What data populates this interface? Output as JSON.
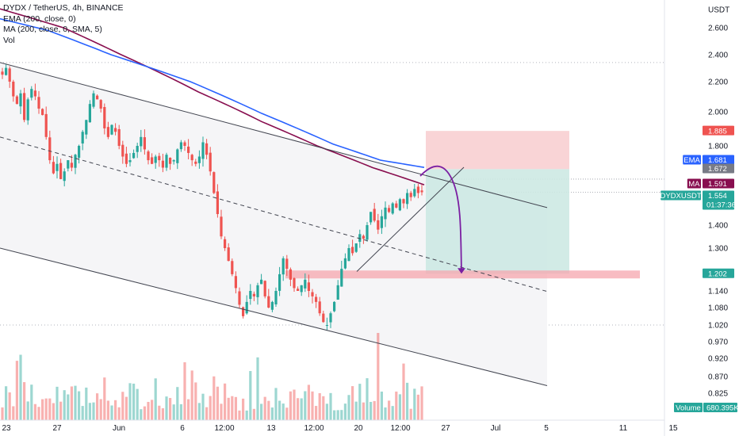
{
  "legend": {
    "title": "DYDX / TetherUS, 4h, BINANCE",
    "ema": "EMA (200, close, 0)",
    "ma": "MA (200, close, 0, SMA, 5)",
    "vol": "Vol"
  },
  "colors": {
    "up": "#26a69a",
    "down": "#ef5350",
    "ema": "#2962ff",
    "ma": "#880e4f",
    "stop_zone": "#f7c9cc",
    "target_zone": "#cde9e3",
    "support_band": "#f6a5ad",
    "channel": "#f5f5f7"
  },
  "chart_data": {
    "type": "candlestick",
    "symbol": "DYDXUSDT",
    "interval": "4h",
    "exchange": "BINANCE",
    "ylim": [
      0.8,
      2.75
    ],
    "yticks": [
      "USDT",
      "2.600",
      "2.400",
      "2.200",
      "2.000",
      "1.800",
      "1.400",
      "1.300",
      "1.140",
      "1.080",
      "1.020",
      "0.970",
      "0.920",
      "0.870",
      "0.825"
    ],
    "xticks": [
      "23",
      "27",
      "Jun",
      "6",
      "12:00",
      "13",
      "12:00",
      "20",
      "12:00",
      "27",
      "Jul",
      "5",
      "11",
      "15"
    ],
    "price_tags": [
      {
        "label": "",
        "value": "1.885",
        "color": "#ef5350"
      },
      {
        "label": "EMA",
        "value": "1.681",
        "color": "#2962ff"
      },
      {
        "label": "",
        "value": "1.672",
        "color": "#787b86"
      },
      {
        "label": "MA",
        "value": "1.591",
        "color": "#880e4f"
      },
      {
        "label": "DYDXUSDT",
        "value": "1.554",
        "sub": "01:37:36",
        "color": "#26a69a"
      },
      {
        "label": "",
        "value": "1.202",
        "color": "#26a69a"
      }
    ],
    "volume_tag": {
      "label": "Volume",
      "value": "680.395K",
      "color": "#26a69a"
    },
    "close_path": [
      2.25,
      2.3,
      2.2,
      2.1,
      2.05,
      2.12,
      1.95,
      2.08,
      2.15,
      2.1,
      2.02,
      1.98,
      1.85,
      1.72,
      1.65,
      1.7,
      1.62,
      1.66,
      1.72,
      1.68,
      1.75,
      1.8,
      1.88,
      1.95,
      2.05,
      2.12,
      2.08,
      2.02,
      1.9,
      1.85,
      1.92,
      1.88,
      1.8,
      1.74,
      1.7,
      1.72,
      1.76,
      1.8,
      1.85,
      1.78,
      1.72,
      1.7,
      1.74,
      1.72,
      1.68,
      1.75,
      1.7,
      1.72,
      1.78,
      1.82,
      1.8,
      1.76,
      1.72,
      1.7,
      1.74,
      1.82,
      1.75,
      1.66,
      1.55,
      1.45,
      1.35,
      1.3,
      1.25,
      1.2,
      1.15,
      1.09,
      1.05,
      1.1,
      1.14,
      1.12,
      1.16,
      1.18,
      1.12,
      1.08,
      1.1,
      1.14,
      1.2,
      1.26,
      1.22,
      1.18,
      1.15,
      1.14,
      1.16,
      1.18,
      1.14,
      1.12,
      1.1,
      1.06,
      1.03,
      1.02,
      1.06,
      1.1,
      1.16,
      1.22,
      1.26,
      1.3,
      1.28,
      1.32,
      1.36,
      1.34,
      1.4,
      1.46,
      1.42,
      1.38,
      1.44,
      1.48,
      1.46,
      1.5,
      1.48,
      1.52,
      1.5,
      1.55,
      1.53,
      1.57,
      1.55,
      1.554
    ],
    "ema_line": [
      [
        0,
        2.67
      ],
      [
        60,
        2.58
      ],
      [
        140,
        2.4
      ],
      [
        240,
        2.2
      ],
      [
        330,
        1.99
      ],
      [
        420,
        1.81
      ],
      [
        480,
        1.72
      ],
      [
        535,
        1.681
      ]
    ],
    "ma_line": [
      [
        0,
        2.75
      ],
      [
        80,
        2.6
      ],
      [
        160,
        2.38
      ],
      [
        250,
        2.13
      ],
      [
        330,
        1.94
      ],
      [
        400,
        1.8
      ],
      [
        470,
        1.68
      ],
      [
        535,
        1.591
      ]
    ],
    "channel_top": [
      [
        0,
        2.34
      ],
      [
        690,
        1.48
      ]
    ],
    "channel_mid": [
      [
        0,
        1.85
      ],
      [
        690,
        1.138
      ]
    ],
    "channel_bottom": [
      [
        0,
        1.3
      ],
      [
        690,
        0.845
      ]
    ],
    "rising_line": [
      [
        450,
        1.21
      ],
      [
        585,
        1.682
      ]
    ],
    "support_level": 1.202,
    "position": {
      "entry": 1.672,
      "stop": 1.885,
      "target": 1.202,
      "x_start": 537,
      "x_end": 718
    },
    "projection": [
      [
        530,
        1.636
      ],
      [
        558,
        1.68
      ],
      [
        572,
        1.6
      ],
      [
        579,
        1.42
      ],
      [
        582,
        1.205
      ]
    ],
    "volume_spikes": [
      {
        "index": 5,
        "value": 0.75
      },
      {
        "index": 103,
        "value": 1.0
      },
      {
        "index": 70,
        "value": 0.72
      }
    ]
  }
}
